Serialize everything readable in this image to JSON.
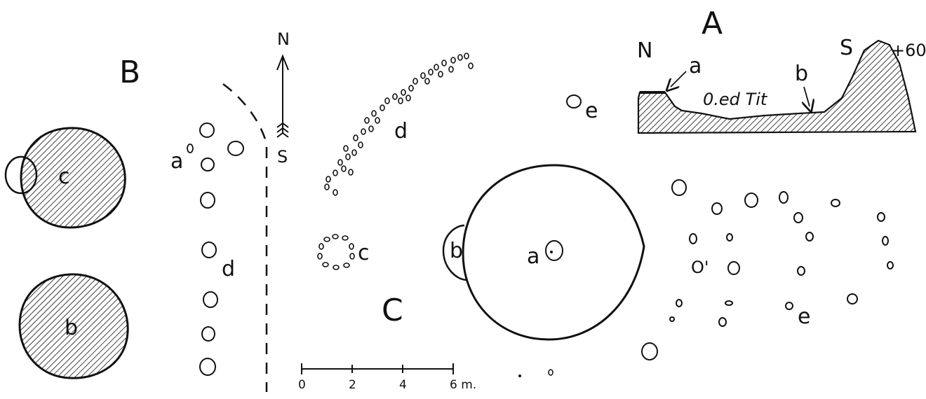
{
  "figures": {
    "A": {
      "letter": "A",
      "north": "N",
      "south": "S",
      "height": "+60",
      "point_a": "a",
      "point_b": "b",
      "river": "0.ed Tit"
    },
    "B": {
      "letter": "B",
      "mound_c": "c",
      "mound_b": "b",
      "point_a": "a",
      "row_d": "d"
    },
    "C": {
      "letter": "C",
      "compass_n": "N",
      "compass_s": "S",
      "arc_d": "d",
      "ring_c": "c",
      "mound_a": "a",
      "annex_b": "b",
      "marker_e": "e",
      "field_e": "e",
      "field_o": "O'"
    }
  },
  "scale_bar": {
    "ticks": [
      "0",
      "2",
      "4",
      "6 m."
    ]
  },
  "colors": {
    "ink": "#111111",
    "background": "#ffffff"
  }
}
